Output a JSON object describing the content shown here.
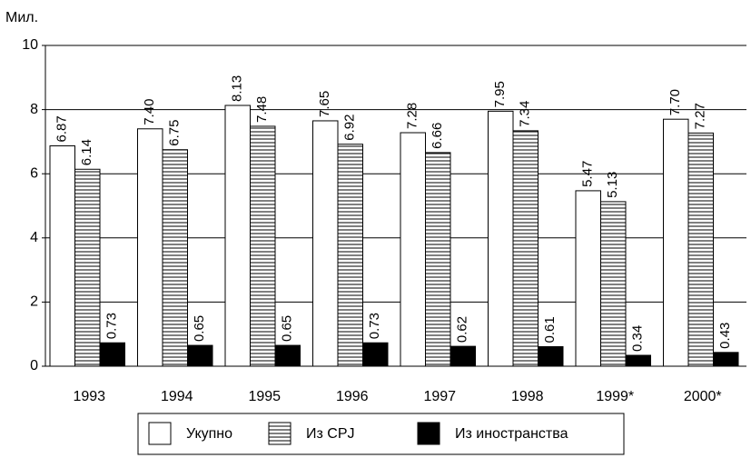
{
  "chart_data": {
    "type": "bar",
    "y_label": "Мил.",
    "categories": [
      "1993",
      "1994",
      "1995",
      "1996",
      "1997",
      "1998",
      "1999*",
      "2000*"
    ],
    "series": [
      {
        "name": "Укупно",
        "color": "#ffffff",
        "values": [
          6.87,
          7.4,
          8.13,
          7.65,
          7.28,
          7.95,
          5.47,
          7.7
        ],
        "value_labels": [
          "6.87",
          "7.40",
          "8.13",
          "7.65",
          "7.28",
          "7.95",
          "5.47",
          "7.70"
        ]
      },
      {
        "name": "Из СРЈ",
        "color": "#ffffff",
        "pattern": "horizontal-lines",
        "values": [
          6.14,
          6.75,
          7.48,
          6.92,
          6.66,
          7.34,
          5.13,
          7.27
        ],
        "value_labels": [
          "6.14",
          "6.75",
          "7.48",
          "6.92",
          "6.66",
          "7.34",
          "5.13",
          "7.27"
        ]
      },
      {
        "name": "Из иностранства",
        "color": "#000000",
        "values": [
          0.73,
          0.65,
          0.65,
          0.73,
          0.62,
          0.61,
          0.34,
          0.43
        ],
        "value_labels": [
          "0.73",
          "0.65",
          "0.65",
          "0.73",
          "0.62",
          "0.61",
          "0.34",
          "0.43"
        ]
      }
    ],
    "ylim": [
      0,
      10
    ],
    "yticks": [
      0,
      2,
      4,
      6,
      8,
      10
    ],
    "grid": true,
    "legend": "bottom"
  }
}
